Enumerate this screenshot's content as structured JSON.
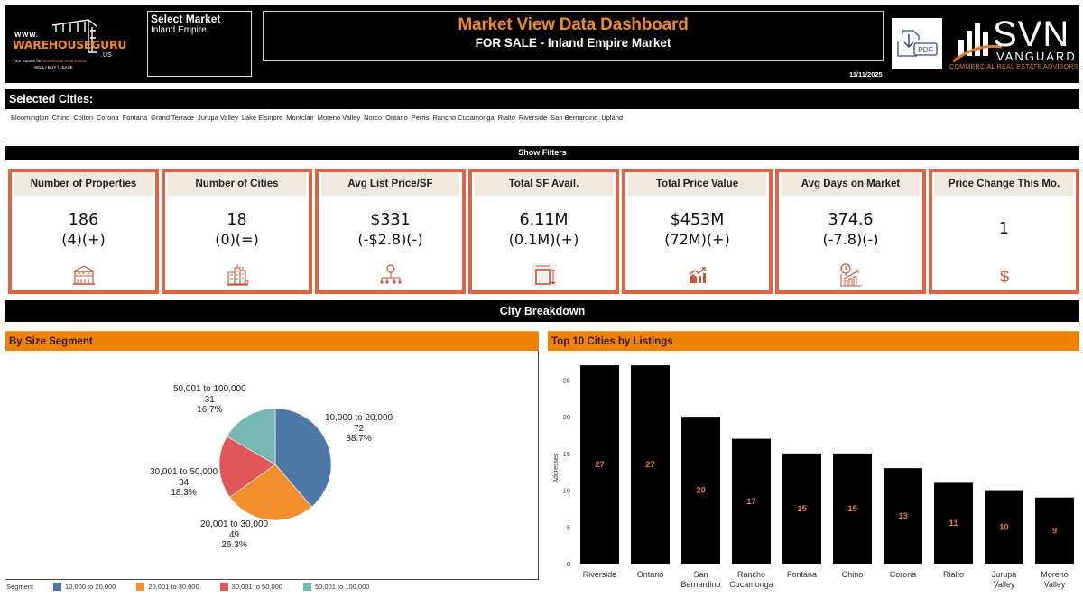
{
  "header": {
    "logo": {
      "www": "WWW.",
      "brand": "WAREHOUSEGURU",
      "domain": ".US",
      "tagline_prefix": "Your Source for ",
      "tagline_highlight": "Warehouse Real Estate",
      "sub": "SELL | BUY | LEASE"
    },
    "market_select": {
      "label": "Select Market",
      "value": "Inland Empire"
    },
    "title": "Market View Data Dashboard",
    "subtitle": "FOR SALE - Inland Empire Market",
    "date": "11/11/2025",
    "pdf_button": {
      "icon": "pdf-download-icon",
      "label": "PDF"
    },
    "partner_logo": {
      "name": "SVN",
      "sub": "VANGUARD",
      "tagline": "COMMERCIAL REAL ESTATE ADVISORS"
    }
  },
  "selected_cities": {
    "label": "Selected Cities:",
    "items": [
      "Bloomington",
      "Chino",
      "Colton",
      "Corona",
      "Fontana",
      "Grand Terrace",
      "Jurupa Valley",
      "Lake Elsinore",
      "Montclair",
      "Moreno Valley",
      "Norco",
      "Ontario",
      "Perris",
      "Rancho Cucamonga",
      "Rialto",
      "Riverside",
      "San Bernardino",
      "Upland"
    ]
  },
  "show_filters_label": "Show Filters",
  "kpis": [
    {
      "title": "Number of Properties",
      "value": "186",
      "delta": "(4)(+)",
      "icon": "building-icon"
    },
    {
      "title": "Number of Cities",
      "value": "18",
      "delta": "(0)(=)",
      "icon": "city-icon"
    },
    {
      "title": "Avg List Price/SF",
      "value": "$331",
      "delta": "(-$2.8)(-)",
      "icon": "price-network-icon"
    },
    {
      "title": "Total SF Avail.",
      "value": "6.11M",
      "delta": "(0.1M)(+)",
      "icon": "area-dimension-icon"
    },
    {
      "title": "Total Price Value",
      "value": "$453M",
      "delta": "(72M)(+)",
      "icon": "growth-chart-icon"
    },
    {
      "title": "Avg Days on Market",
      "value": "374.6",
      "delta": "(-7.8)(-)",
      "icon": "clock-chart-icon"
    },
    {
      "title": "Price Change This Mo.",
      "value": "1",
      "delta": "",
      "icon": "dollar-icon"
    }
  ],
  "city_breakdown_label": "City Breakdown",
  "colors": {
    "accent_orange": "#ee8205",
    "kpi_border": "#e06443",
    "bar_label": "#e8704a"
  },
  "chart_data": [
    {
      "type": "pie",
      "title": "By Size Segment",
      "legend_title": "Segment",
      "legend_position": "bottom-left",
      "slices": [
        {
          "label": "10,000 to 20,000",
          "value": 72,
          "percent": "38.7%",
          "color": "#4e79a7"
        },
        {
          "label": "20,001 to 30,000",
          "value": 49,
          "percent": "26.3%",
          "color": "#f28e2b"
        },
        {
          "label": "30,001 to 50,000",
          "value": 34,
          "percent": "18.3%",
          "color": "#e15759"
        },
        {
          "label": "50,001 to 100,000",
          "value": 31,
          "percent": "16.7%",
          "color": "#76b7b2"
        }
      ]
    },
    {
      "type": "bar",
      "title": "Top 10 Cities by Listings",
      "xlabel": "",
      "ylabel": "Addresses",
      "ylim": [
        0,
        28
      ],
      "yticks": [
        0,
        5,
        10,
        15,
        20,
        25
      ],
      "grid": false,
      "bar_color": "#000000",
      "label_color": "#e8704a",
      "categories": [
        [
          "Riverside"
        ],
        [
          "Ontario"
        ],
        [
          "San",
          "Bernardino"
        ],
        [
          "Rancho",
          "Cucamonga"
        ],
        [
          "Fontana"
        ],
        [
          "Chino"
        ],
        [
          "Corona"
        ],
        [
          "Rialto"
        ],
        [
          "Jurupa",
          "Valley"
        ],
        [
          "Moreno",
          "Valley"
        ]
      ],
      "values": [
        27,
        27,
        20,
        17,
        15,
        15,
        13,
        11,
        10,
        9
      ]
    }
  ]
}
